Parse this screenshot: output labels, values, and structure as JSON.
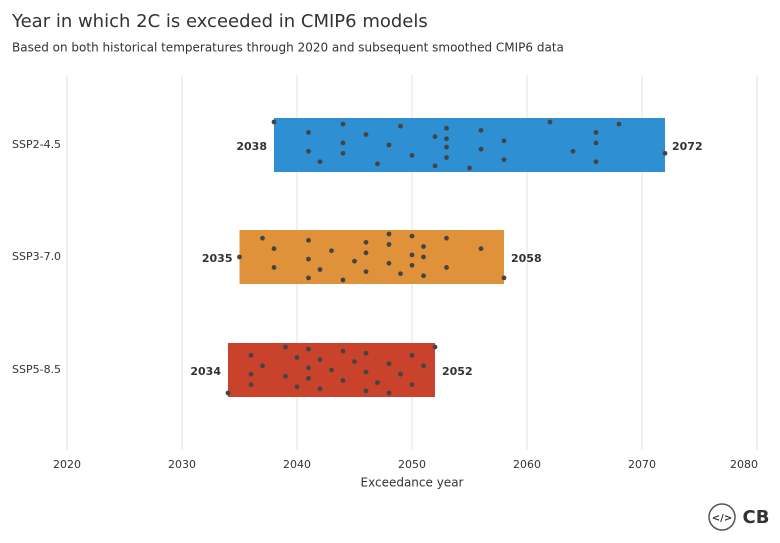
{
  "chart_data": {
    "type": "range",
    "title": "Year in which 2C is exceeded in CMIP6 models",
    "subtitle": "Based on both historical temperatures through 2020 and subsequent smoothed CMIP6 data",
    "xlabel": "Exceedance year",
    "categories": [
      "SSP2-4.5",
      "SSP3-7.0",
      "SSP5-8.5"
    ],
    "start": [
      2038,
      2035,
      2034
    ],
    "end": [
      2072,
      2058,
      2052
    ],
    "colors": [
      "#2e8fd3",
      "#e0923a",
      "#c9432c"
    ],
    "point_color": "#444444",
    "points": [
      [
        2038,
        2041,
        2041,
        2042,
        2044,
        2044,
        2044,
        2046,
        2047,
        2048,
        2049,
        2050,
        2052,
        2052,
        2053,
        2053,
        2053,
        2053,
        2055,
        2056,
        2056,
        2058,
        2058,
        2062,
        2064,
        2066,
        2066,
        2066,
        2068,
        2072
      ],
      [
        2035,
        2037,
        2038,
        2038,
        2041,
        2041,
        2041,
        2042,
        2043,
        2044,
        2045,
        2046,
        2046,
        2046,
        2048,
        2048,
        2048,
        2049,
        2050,
        2050,
        2050,
        2051,
        2051,
        2051,
        2053,
        2053,
        2056,
        2058
      ],
      [
        2034,
        2036,
        2036,
        2036,
        2037,
        2039,
        2039,
        2040,
        2040,
        2041,
        2041,
        2041,
        2042,
        2042,
        2043,
        2044,
        2044,
        2045,
        2046,
        2046,
        2046,
        2047,
        2048,
        2048,
        2049,
        2050,
        2050,
        2051,
        2052
      ]
    ],
    "xlim": [
      2020,
      2080
    ],
    "xticks": [
      2020,
      2030,
      2040,
      2050,
      2060,
      2070,
      2080
    ],
    "grid": true
  },
  "footer": {
    "embed": "</>",
    "logo": "CB"
  }
}
